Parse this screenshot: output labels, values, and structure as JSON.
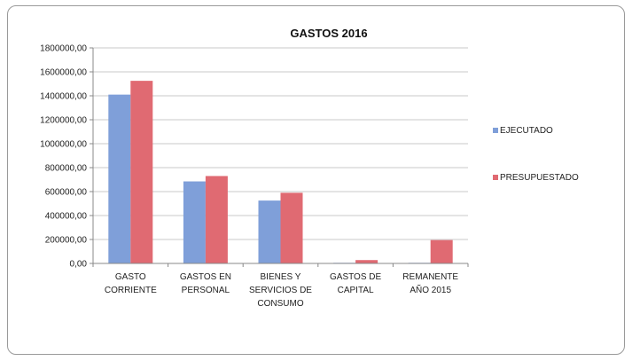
{
  "chart_data": {
    "type": "bar",
    "title": "GASTOS 2016",
    "categories": [
      [
        "GASTO",
        "CORRIENTE"
      ],
      [
        "GASTOS EN",
        "PERSONAL"
      ],
      [
        "BIENES Y",
        "SERVICIOS DE",
        "CONSUMO"
      ],
      [
        "GASTOS DE",
        "CAPITAL"
      ],
      [
        "REMANENTE",
        "AÑO 2015"
      ]
    ],
    "series": [
      {
        "name": "EJECUTADO",
        "color": "#7f9fd9",
        "values": [
          1410000,
          685000,
          525000,
          5000,
          5000
        ]
      },
      {
        "name": "PRESUPUESTADO",
        "color": "#e06a72",
        "values": [
          1525000,
          730000,
          590000,
          28000,
          195000
        ]
      }
    ],
    "yticks": [
      "0,00",
      "200000,00",
      "400000,00",
      "600000,00",
      "800000,00",
      "1000000,00",
      "1200000,00",
      "1400000,00",
      "1600000,00",
      "1800000,00"
    ],
    "ylim": [
      0,
      1800000
    ],
    "grid": true,
    "legend_position": "right"
  }
}
